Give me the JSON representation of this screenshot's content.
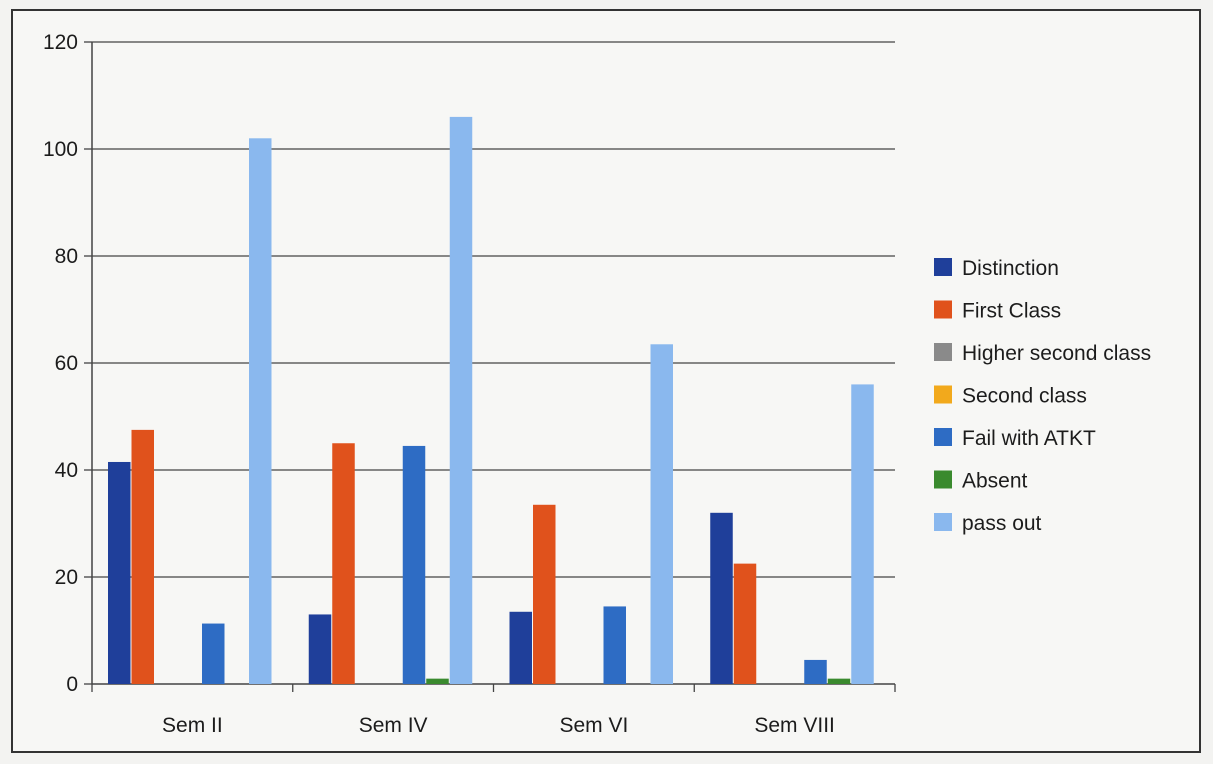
{
  "chart_data": {
    "type": "bar",
    "title": "",
    "xlabel": "",
    "ylabel": "",
    "ylim": [
      0,
      120
    ],
    "yticks": [
      0,
      20,
      40,
      60,
      80,
      100,
      120
    ],
    "grid": true,
    "legend_position": "right",
    "categories": [
      "Sem II",
      "Sem  IV",
      "Sem VI",
      "Sem VIII"
    ],
    "series": [
      {
        "name": "Distinction",
        "color": "#1f3f9a",
        "values": [
          41.5,
          13,
          13.5,
          32
        ]
      },
      {
        "name": "First Class",
        "color": "#e0521c",
        "values": [
          47.5,
          45,
          33.5,
          22.5
        ]
      },
      {
        "name": "Higher second class",
        "color": "#8a8a8a",
        "values": [
          0,
          0,
          0,
          0
        ]
      },
      {
        "name": "Second class",
        "color": "#f2a91c",
        "values": [
          0,
          0,
          0,
          0
        ]
      },
      {
        "name": "Fail with ATKT",
        "color": "#2e6cc4",
        "values": [
          11.3,
          44.5,
          14.5,
          4.5
        ]
      },
      {
        "name": "Absent",
        "color": "#3a8a2e",
        "values": [
          0,
          1,
          0,
          1
        ]
      },
      {
        "name": "pass out",
        "color": "#8ab8ee",
        "values": [
          102,
          106,
          63.5,
          56
        ]
      }
    ]
  }
}
